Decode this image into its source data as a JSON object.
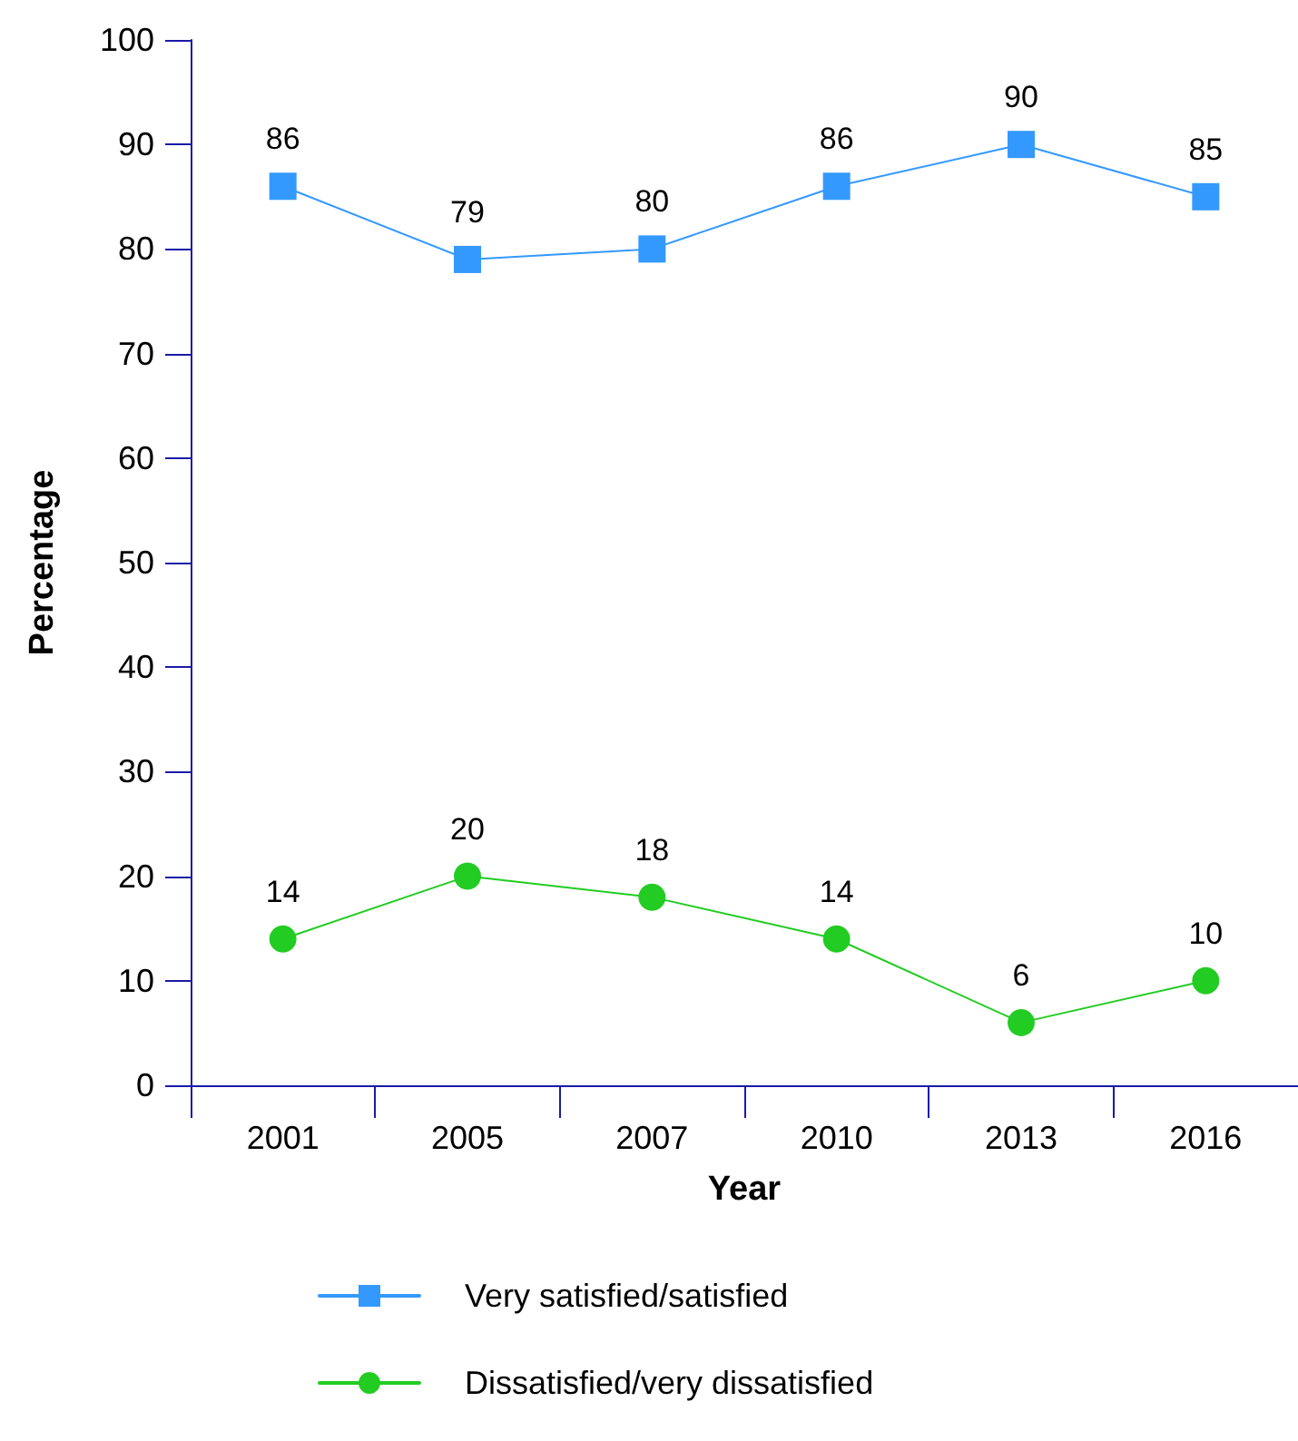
{
  "chart_data": {
    "type": "line",
    "xlabel": "Year",
    "ylabel": "Percentage",
    "categories": [
      "2001",
      "2005",
      "2007",
      "2010",
      "2013",
      "2016"
    ],
    "series": [
      {
        "name": "Very satisfied/satisfied",
        "color": "#3399ff",
        "marker": "square",
        "values": [
          86,
          79,
          80,
          86,
          90,
          85
        ]
      },
      {
        "name": "Dissatisfied/very dissatisfied",
        "color": "#22cc22",
        "marker": "circle",
        "values": [
          14,
          20,
          18,
          14,
          6,
          10
        ]
      }
    ],
    "ylim": [
      0,
      100
    ],
    "yticks": [
      0,
      10,
      20,
      30,
      40,
      50,
      60,
      70,
      80,
      90,
      100
    ],
    "grid": false,
    "legend": "bottom",
    "data_labels": true
  }
}
